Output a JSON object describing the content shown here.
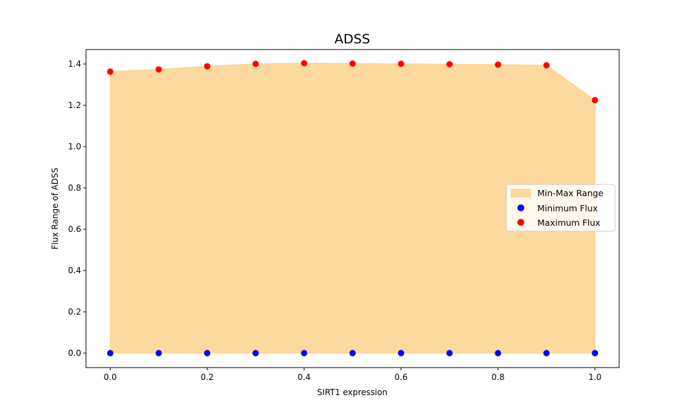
{
  "chart_data": {
    "type": "scatter",
    "title": "ADSS",
    "xlabel": "SIRT1 expression",
    "ylabel": "Flux Range of ADSS",
    "xlim": [
      -0.05,
      1.05
    ],
    "ylim": [
      -0.07,
      1.47
    ],
    "x_ticks": [
      "0.0",
      "0.2",
      "0.4",
      "0.6",
      "0.8",
      "1.0"
    ],
    "y_ticks": [
      "0.0",
      "0.2",
      "0.4",
      "0.6",
      "0.8",
      "1.0",
      "1.2",
      "1.4"
    ],
    "grid": false,
    "legend_position": "center-right",
    "x": [
      0.0,
      0.1,
      0.2,
      0.3,
      0.4,
      0.5,
      0.6,
      0.7,
      0.8,
      0.9,
      1.0
    ],
    "series": [
      {
        "name": "Min-Max Range",
        "kind": "fill_between",
        "color": "#fdd9a0",
        "edge_color": "#f9d08a"
      },
      {
        "name": "Minimum Flux",
        "kind": "scatter",
        "color": "#0000ff",
        "values": [
          0,
          0,
          0,
          0,
          0,
          0,
          0,
          0,
          0,
          0,
          0
        ]
      },
      {
        "name": "Maximum Flux",
        "kind": "scatter",
        "color": "#ff0000",
        "values": [
          1.363,
          1.374,
          1.389,
          1.401,
          1.404,
          1.402,
          1.401,
          1.399,
          1.397,
          1.394,
          1.225
        ]
      }
    ]
  }
}
